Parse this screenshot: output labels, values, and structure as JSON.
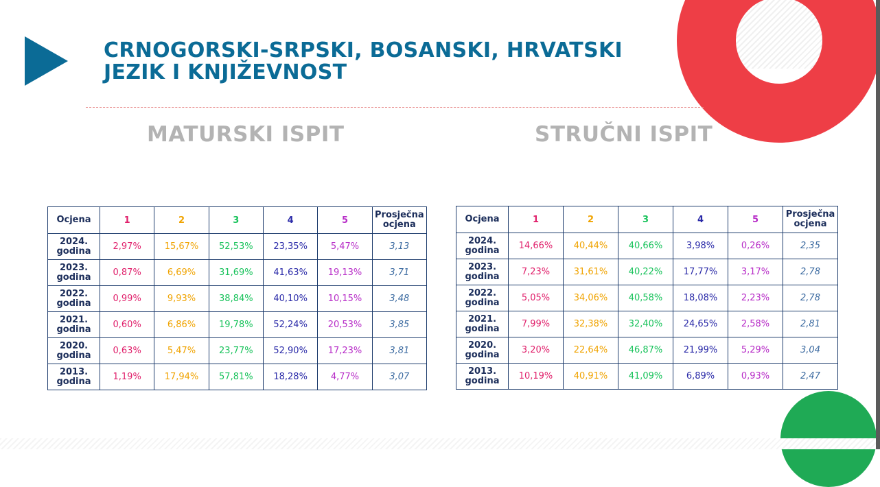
{
  "title": "CRNOGORSKI-SRPSKI, BOSANSKI, HRVATSKI\nJEZIK I KNJIŽEVNOST",
  "colors": {
    "title": "#0b6b96",
    "accent_red": "#ee3e46",
    "accent_green": "#1faa55"
  },
  "headers": [
    "Ocjena",
    "1",
    "2",
    "3",
    "4",
    "5",
    "Prosječna ocjena"
  ],
  "maturski": {
    "heading": "MATURSKI ISPIT",
    "rows": [
      {
        "year": "2024. godina",
        "v": [
          "2,97%",
          "15,67%",
          "52,53%",
          "23,35%",
          "5,47%"
        ],
        "avg": "3,13"
      },
      {
        "year": "2023. godina",
        "v": [
          "0,87%",
          "6,69%",
          "31,69%",
          "41,63%",
          "19,13%"
        ],
        "avg": "3,71"
      },
      {
        "year": "2022. godina",
        "v": [
          "0,99%",
          "9,93%",
          "38,84%",
          "40,10%",
          "10,15%"
        ],
        "avg": "3,48"
      },
      {
        "year": "2021. godina",
        "v": [
          "0,60%",
          "6,86%",
          "19,78%",
          "52,24%",
          "20,53%"
        ],
        "avg": "3,85"
      },
      {
        "year": "2020. godina",
        "v": [
          "0,63%",
          "5,47%",
          "23,77%",
          "52,90%",
          "17,23%"
        ],
        "avg": "3,81"
      },
      {
        "year": "2013. godina",
        "v": [
          "1,19%",
          "17,94%",
          "57,81%",
          "18,28%",
          "4,77%"
        ],
        "avg": "3,07"
      }
    ]
  },
  "strucni": {
    "heading": "STRUČNI ISPIT",
    "rows": [
      {
        "year": "2024. godina",
        "v": [
          "14,66%",
          "40,44%",
          "40,66%",
          "3,98%",
          "0,26%"
        ],
        "avg": "2,35"
      },
      {
        "year": "2023. godina",
        "v": [
          "7,23%",
          "31,61%",
          "40,22%",
          "17,77%",
          "3,17%"
        ],
        "avg": "2,78"
      },
      {
        "year": "2022. godina",
        "v": [
          "5,05%",
          "34,06%",
          "40,58%",
          "18,08%",
          "2,23%"
        ],
        "avg": "2,78"
      },
      {
        "year": "2021. godina",
        "v": [
          "7,99%",
          "32,38%",
          "32,40%",
          "24,65%",
          "2,58%"
        ],
        "avg": "2,81"
      },
      {
        "year": "2020. godina",
        "v": [
          "3,20%",
          "22,64%",
          "46,87%",
          "21,99%",
          "5,29%"
        ],
        "avg": "3,04"
      },
      {
        "year": "2013. godina",
        "v": [
          "10,19%",
          "40,91%",
          "41,09%",
          "6,89%",
          "0,93%"
        ],
        "avg": "2,47"
      }
    ]
  }
}
